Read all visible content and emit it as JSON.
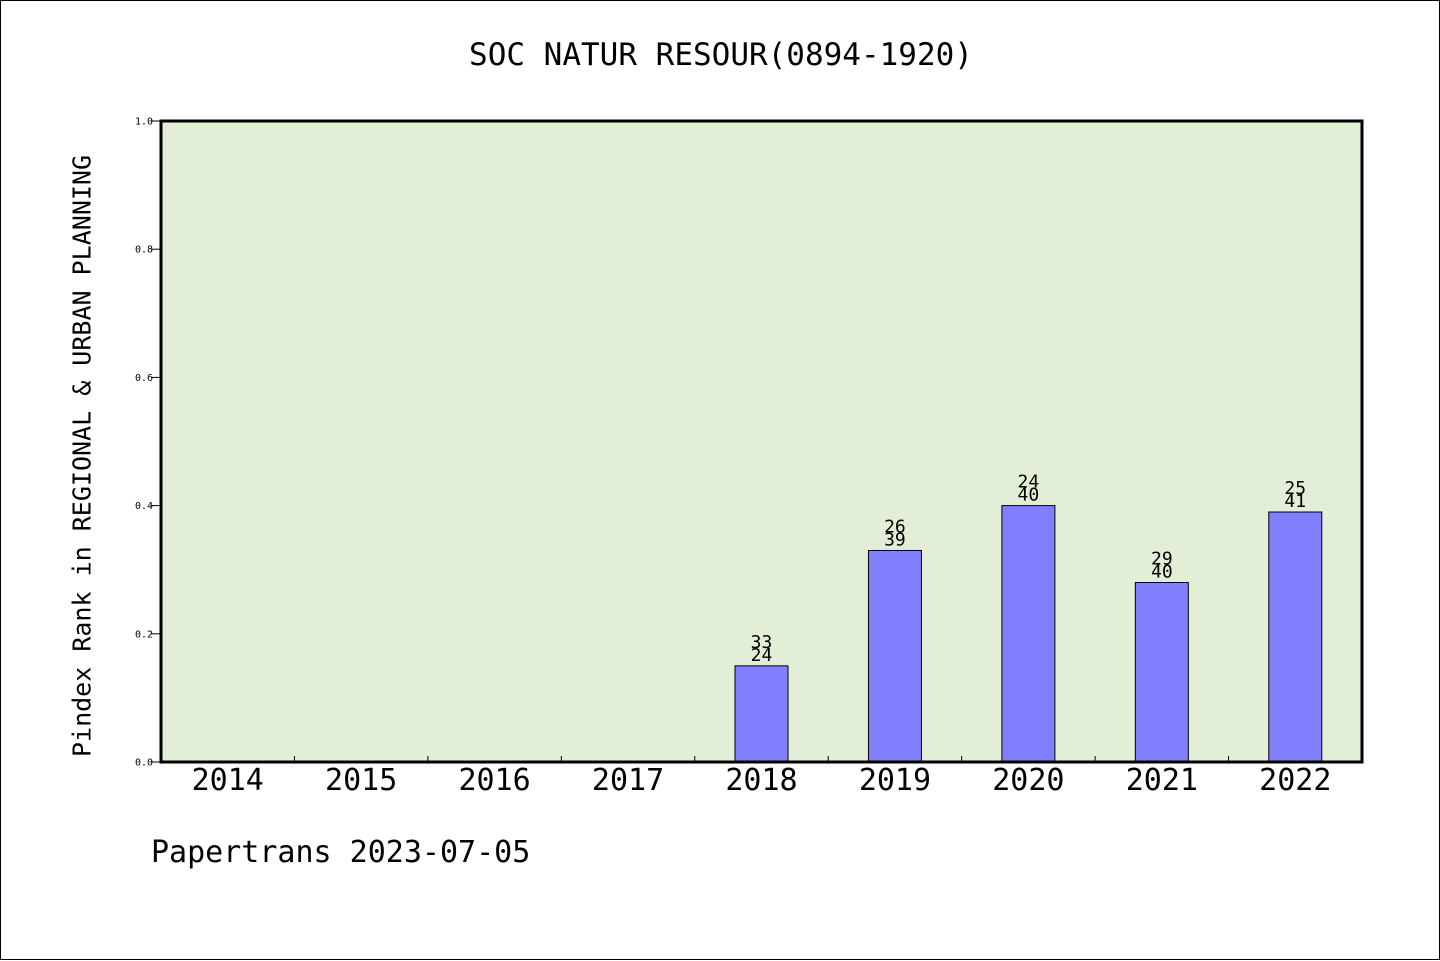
{
  "chart_data": {
    "type": "bar",
    "title": "SOC NATUR RESOUR(0894-1920)",
    "ylabel": "Pindex Rank in REGIONAL & URBAN PLANNING",
    "xlabel": "",
    "categories": [
      "2014",
      "2015",
      "2016",
      "2017",
      "2018",
      "2019",
      "2020",
      "2021",
      "2022"
    ],
    "values": [
      null,
      null,
      null,
      null,
      0.15,
      0.33,
      0.4,
      0.28,
      0.39
    ],
    "bar_labels": [
      null,
      null,
      null,
      null,
      [
        "33",
        "24"
      ],
      [
        "26",
        "39"
      ],
      [
        "24",
        "40"
      ],
      [
        "29",
        "40"
      ],
      [
        "25",
        "41"
      ]
    ],
    "ylim": [
      0.0,
      1.0
    ],
    "yticks": [
      "0.0",
      "0.2",
      "0.4",
      "0.6",
      "0.8",
      "1.0"
    ],
    "grid": false,
    "colors": {
      "plot_background": "#e2efd6",
      "bar_fill": "#8080ff",
      "bar_stroke": "#000000",
      "axes": "#000000"
    }
  },
  "footer": "Papertrans 2023-07-05"
}
